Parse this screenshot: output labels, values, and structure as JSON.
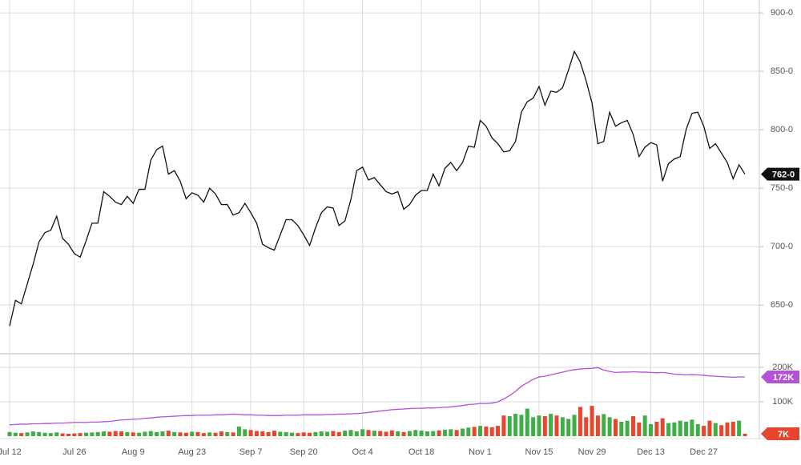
{
  "chart_data": [
    {
      "type": "line",
      "categories": [
        "Jul 12",
        null,
        null,
        null,
        null,
        null,
        null,
        null,
        null,
        null,
        null,
        "Jul 26",
        null,
        null,
        null,
        null,
        null,
        null,
        null,
        null,
        null,
        "Aug 9",
        null,
        null,
        null,
        null,
        null,
        null,
        null,
        null,
        null,
        "Aug 23",
        null,
        null,
        null,
        null,
        null,
        null,
        null,
        null,
        null,
        "Sep 7",
        null,
        null,
        null,
        null,
        null,
        null,
        null,
        null,
        "Sep 20",
        null,
        null,
        null,
        null,
        null,
        null,
        null,
        null,
        null,
        "Oct 4",
        null,
        null,
        null,
        null,
        null,
        null,
        null,
        null,
        null,
        "Oct 18",
        null,
        null,
        null,
        null,
        null,
        null,
        null,
        null,
        null,
        "Nov 1",
        null,
        null,
        null,
        null,
        null,
        null,
        null,
        null,
        null,
        "Nov 15",
        null,
        null,
        null,
        null,
        null,
        null,
        null,
        null,
        "Nov 29",
        null,
        null,
        null,
        null,
        null,
        null,
        null,
        null,
        null,
        "Dec 13",
        null,
        null,
        null,
        null,
        null,
        null,
        null,
        null,
        "Dec 27",
        null,
        null,
        null,
        null,
        null,
        null,
        null
      ],
      "series": [
        {
          "color": "#111111",
          "last_label": "762-0",
          "values": [
            632,
            654,
            651,
            668,
            685,
            704,
            712,
            714,
            726,
            707,
            702,
            694,
            691,
            705,
            720,
            720,
            747,
            743,
            738,
            736,
            743,
            737,
            749,
            749,
            774,
            783,
            786,
            762,
            765,
            756,
            741,
            746,
            744,
            738,
            750,
            745,
            736,
            736,
            727,
            729,
            737,
            729,
            720,
            702,
            699,
            697,
            710,
            723,
            723,
            718,
            710,
            701,
            716,
            729,
            734,
            733,
            718,
            722,
            740,
            765,
            768,
            757,
            759,
            753,
            747,
            745,
            747,
            732,
            736,
            744,
            748,
            748,
            762,
            752,
            767,
            772,
            765,
            772,
            786,
            785,
            808,
            803,
            793,
            788,
            781,
            782,
            790,
            815,
            824,
            827,
            837,
            821,
            833,
            832,
            836,
            851,
            867,
            858,
            842,
            823,
            788,
            790,
            815,
            803,
            806,
            808,
            796,
            777,
            785,
            789,
            787,
            756,
            771,
            775,
            777,
            800,
            814,
            815,
            803,
            784,
            788,
            780,
            772,
            758,
            770,
            762
          ]
        }
      ],
      "ylim": [
        609,
        911
      ],
      "yticks": [
        {
          "value": 650,
          "label": "650-0"
        },
        {
          "value": 700,
          "label": "700-0"
        },
        {
          "value": 750,
          "label": "750-0"
        },
        {
          "value": 800,
          "label": "800-0"
        },
        {
          "value": 850,
          "label": "850-0"
        },
        {
          "value": 900,
          "label": "900-0"
        }
      ],
      "grid": true
    },
    {
      "type": "bar",
      "up_color": "#3fae49",
      "down_color": "#e4472e",
      "series": [
        {
          "type": "bar",
          "last_label": "7K",
          "last_color": "#e4472e",
          "values": [
            12,
            10,
            9,
            11,
            14,
            12,
            10,
            9,
            11,
            8,
            7,
            8,
            9,
            10,
            11,
            12,
            14,
            13,
            15,
            14,
            12,
            11,
            10,
            13,
            15,
            12,
            14,
            16,
            12,
            11,
            10,
            13,
            12,
            9,
            11,
            10,
            14,
            12,
            11,
            28,
            20,
            18,
            15,
            14,
            12,
            16,
            13,
            12,
            10,
            9,
            11,
            10,
            12,
            14,
            13,
            15,
            12,
            16,
            18,
            14,
            20,
            18,
            16,
            15,
            13,
            17,
            14,
            12,
            15,
            18,
            16,
            14,
            15,
            17,
            19,
            20,
            18,
            22,
            25,
            27,
            30,
            28,
            26,
            30,
            60,
            58,
            65,
            62,
            80,
            55,
            60,
            58,
            65,
            60,
            55,
            50,
            62,
            85,
            55,
            88,
            60,
            64,
            55,
            50,
            42,
            45,
            58,
            40,
            60,
            35,
            42,
            52,
            38,
            40,
            45,
            42,
            48,
            35,
            30,
            45,
            38,
            32,
            40,
            42,
            45,
            7
          ]
        },
        {
          "type": "line",
          "color": "#b451d6",
          "last_label": "172K",
          "values": [
            33,
            34,
            35,
            35,
            36,
            36,
            37,
            37,
            38,
            38,
            39,
            40,
            40,
            40,
            41,
            41,
            42,
            43,
            45,
            47,
            48,
            49,
            50,
            52,
            53,
            55,
            56,
            57,
            58,
            59,
            60,
            60,
            61,
            61,
            61,
            62,
            62,
            63,
            64,
            63,
            62,
            62,
            61,
            61,
            60,
            60,
            60,
            61,
            61,
            61,
            62,
            62,
            62,
            62,
            63,
            63,
            64,
            64,
            65,
            66,
            67,
            69,
            71,
            73,
            75,
            77,
            78,
            79,
            80,
            81,
            81,
            82,
            82,
            83,
            84,
            85,
            87,
            89,
            92,
            93,
            95,
            95,
            96,
            100,
            108,
            118,
            130,
            145,
            155,
            165,
            172,
            174,
            178,
            182,
            186,
            190,
            193,
            195,
            196,
            197,
            199,
            192,
            188,
            185,
            186,
            186,
            187,
            186,
            186,
            185,
            184,
            185,
            183,
            180,
            179,
            178,
            179,
            178,
            177,
            175,
            174,
            173,
            172,
            171,
            172,
            172
          ]
        }
      ],
      "ylim": [
        0,
        237
      ],
      "yticks": [
        {
          "value": 100,
          "label": "100K"
        },
        {
          "value": 200,
          "label": "200K"
        }
      ],
      "grid": true
    }
  ]
}
